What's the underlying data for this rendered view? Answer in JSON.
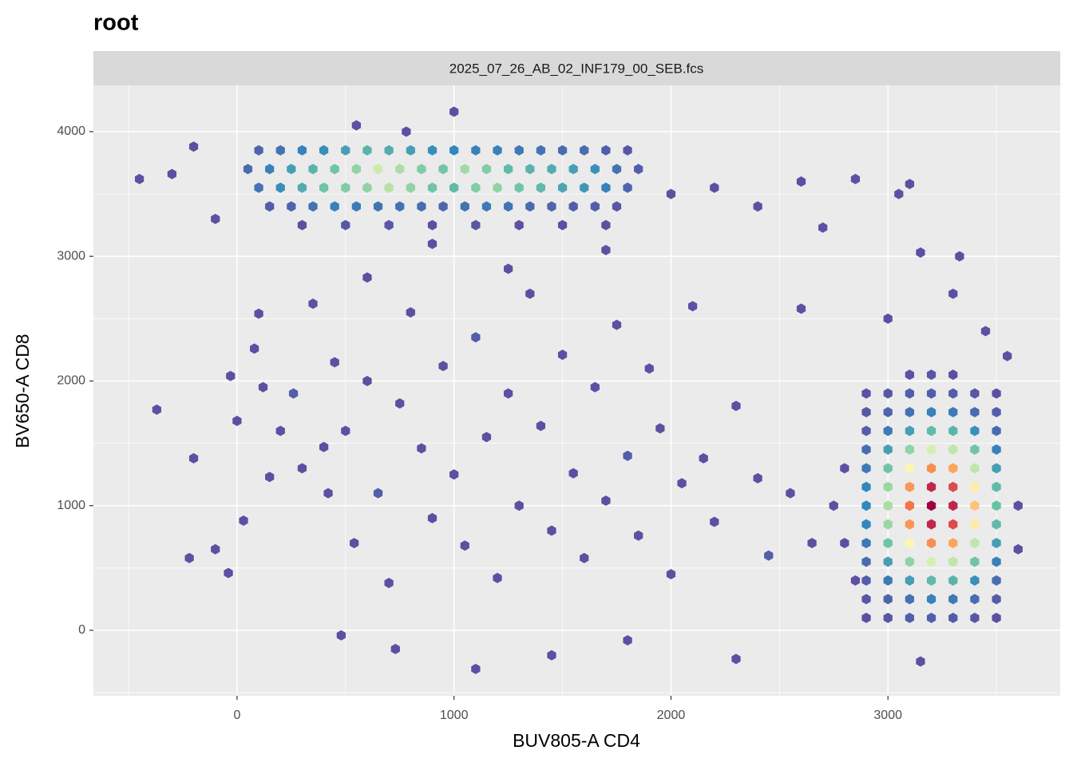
{
  "chart_data": {
    "type": "hexbin",
    "title": "root",
    "facet": "2025_07_26_AB_02_INF179_00_SEB.fcs",
    "x_label": "BUV805-A CD4",
    "y_label": "BV650-A CD8",
    "xlim": [
      -662,
      3794
    ],
    "ylim": [
      -525,
      4371
    ],
    "xticks": [
      0,
      1000,
      2000,
      3000
    ],
    "yticks": [
      0,
      1000,
      2000,
      3000,
      4000
    ],
    "x_minor": [
      -500,
      500,
      1500,
      2500,
      3500
    ],
    "y_minor": [
      -500,
      500,
      1500,
      2500,
      3500
    ],
    "grid": true,
    "colors": [
      "#5e4fa2",
      "#3288bd",
      "#66c2a5",
      "#abdda4",
      "#ffffbf",
      "#fdae61",
      "#f46d43",
      "#d53e4f",
      "#9e0142"
    ],
    "x": [
      100,
      200,
      300,
      400,
      500,
      600,
      700,
      800,
      900,
      1000,
      1100,
      1200,
      1300,
      1400,
      1500,
      1600,
      1700,
      1800,
      50,
      150,
      250,
      350,
      450,
      550,
      650,
      750,
      850,
      950,
      1050,
      1150,
      1250,
      1350,
      1450,
      1550,
      1650,
      1750,
      1850,
      100,
      200,
      300,
      400,
      500,
      600,
      700,
      800,
      900,
      1000,
      1100,
      1200,
      1300,
      1400,
      1500,
      1600,
      1700,
      1800,
      150,
      250,
      350,
      450,
      550,
      650,
      750,
      850,
      950,
      1050,
      1150,
      1250,
      1350,
      1450,
      1550,
      1650,
      1750,
      300,
      500,
      700,
      900,
      1100,
      1300,
      1500,
      1700,
      -450,
      -300,
      -200,
      -100,
      2000,
      2200,
      2400,
      2600,
      2700,
      3050,
      3100,
      2850,
      1000,
      550,
      780,
      2900,
      3000,
      3100,
      3200,
      3300,
      3400,
      3500,
      2900,
      3000,
      3100,
      3200,
      3300,
      3400,
      3500,
      2900,
      3000,
      3100,
      3200,
      3300,
      3400,
      3500,
      2900,
      3000,
      3100,
      3200,
      3300,
      3400,
      3500,
      2900,
      3000,
      3100,
      3200,
      3300,
      3400,
      3500,
      2900,
      3000,
      3100,
      3200,
      3300,
      3400,
      3500,
      2900,
      3000,
      3100,
      3200,
      3300,
      3400,
      3500,
      2900,
      3000,
      3100,
      3200,
      3300,
      3400,
      3500,
      2900,
      3000,
      3100,
      3200,
      3300,
      3400,
      3500,
      2900,
      3000,
      3100,
      3200,
      3300,
      3400,
      3500,
      2900,
      3000,
      3100,
      3200,
      3300,
      3400,
      3500,
      2900,
      3000,
      3100,
      3200,
      3300,
      3400,
      3500,
      2900,
      3000,
      3100,
      3200,
      3300,
      3400,
      3500,
      3100,
      3200,
      3300,
      2800,
      2750,
      2800,
      3600,
      3600,
      2850,
      3150,
      3450,
      3300,
      3150,
      3330,
      3000,
      3550,
      -370,
      -200,
      -220,
      -100,
      -40,
      -30,
      0,
      30,
      80,
      100,
      120,
      150,
      200,
      260,
      300,
      350,
      400,
      420,
      450,
      500,
      540,
      600,
      650,
      700,
      750,
      800,
      850,
      900,
      950,
      1000,
      1050,
      1100,
      1150,
      1200,
      1250,
      1300,
      1350,
      1400,
      1450,
      1500,
      1550,
      1600,
      1650,
      1700,
      1750,
      1800,
      1850,
      1900,
      1950,
      2000,
      2050,
      2100,
      2150,
      2200,
      2300,
      2400,
      2450,
      2550,
      2600,
      2650,
      1100,
      730,
      1450,
      480,
      1800,
      2300,
      900,
      600,
      1250,
      1700
    ],
    "y": [
      3850,
      3850,
      3850,
      3850,
      3850,
      3850,
      3850,
      3850,
      3850,
      3850,
      3850,
      3850,
      3850,
      3850,
      3850,
      3850,
      3850,
      3850,
      3700,
      3700,
      3700,
      3700,
      3700,
      3700,
      3700,
      3700,
      3700,
      3700,
      3700,
      3700,
      3700,
      3700,
      3700,
      3700,
      3700,
      3700,
      3700,
      3550,
      3550,
      3550,
      3550,
      3550,
      3550,
      3550,
      3550,
      3550,
      3550,
      3550,
      3550,
      3550,
      3550,
      3550,
      3550,
      3550,
      3550,
      3400,
      3400,
      3400,
      3400,
      3400,
      3400,
      3400,
      3400,
      3400,
      3400,
      3400,
      3400,
      3400,
      3400,
      3400,
      3400,
      3400,
      3250,
      3250,
      3250,
      3250,
      3250,
      3250,
      3250,
      3250,
      3620,
      3660,
      3880,
      3300,
      3500,
      3550,
      3400,
      3600,
      3230,
      3500,
      3580,
      3620,
      4160,
      4050,
      4000,
      100,
      100,
      100,
      100,
      100,
      100,
      100,
      250,
      250,
      250,
      250,
      250,
      250,
      250,
      400,
      400,
      400,
      400,
      400,
      400,
      400,
      550,
      550,
      550,
      550,
      550,
      550,
      550,
      700,
      700,
      700,
      700,
      700,
      700,
      700,
      850,
      850,
      850,
      850,
      850,
      850,
      850,
      1000,
      1000,
      1000,
      1000,
      1000,
      1000,
      1000,
      1150,
      1150,
      1150,
      1150,
      1150,
      1150,
      1150,
      1300,
      1300,
      1300,
      1300,
      1300,
      1300,
      1300,
      1450,
      1450,
      1450,
      1450,
      1450,
      1450,
      1450,
      1600,
      1600,
      1600,
      1600,
      1600,
      1600,
      1600,
      1750,
      1750,
      1750,
      1750,
      1750,
      1750,
      1750,
      1900,
      1900,
      1900,
      1900,
      1900,
      1900,
      1900,
      2050,
      2050,
      2050,
      700,
      1000,
      1300,
      1000,
      650,
      400,
      -250,
      2400,
      2700,
      3030,
      3000,
      2500,
      2200,
      1770,
      1380,
      580,
      650,
      460,
      2040,
      1680,
      880,
      2260,
      2540,
      1950,
      1230,
      1600,
      1900,
      1300,
      2620,
      1470,
      1100,
      2150,
      1600,
      700,
      2000,
      1100,
      380,
      1820,
      2550,
      1460,
      900,
      2120,
      1250,
      680,
      2350,
      1550,
      420,
      1900,
      1000,
      2700,
      1640,
      800,
      2210,
      1260,
      580,
      1950,
      1040,
      2450,
      1400,
      760,
      2100,
      1620,
      450,
      1180,
      2600,
      1380,
      870,
      1800,
      1220,
      600,
      1100,
      2580,
      700,
      -310,
      -150,
      -200,
      -40,
      -80,
      -230,
      3100,
      2830,
      2900,
      3050
    ],
    "counts": [
      4,
      6,
      8,
      10,
      12,
      15,
      14,
      12,
      10,
      9,
      8,
      8,
      7,
      6,
      5,
      5,
      3,
      2,
      5,
      8,
      12,
      15,
      18,
      22,
      28,
      25,
      20,
      18,
      24,
      20,
      16,
      15,
      14,
      12,
      10,
      6,
      3,
      6,
      10,
      14,
      18,
      20,
      22,
      26,
      22,
      18,
      16,
      20,
      22,
      18,
      16,
      13,
      11,
      8,
      4,
      3,
      4,
      6,
      8,
      7,
      6,
      6,
      5,
      4,
      6,
      7,
      6,
      5,
      4,
      3,
      3,
      2,
      1,
      2,
      2,
      1,
      2,
      1,
      1,
      1,
      1,
      1,
      1,
      1,
      1,
      1,
      1,
      1,
      1,
      1,
      1,
      1,
      1,
      1,
      1,
      1,
      2,
      3,
      3,
      3,
      2,
      1,
      2,
      4,
      6,
      8,
      7,
      5,
      3,
      3,
      7,
      12,
      16,
      15,
      10,
      5,
      5,
      12,
      22,
      29,
      27,
      18,
      8,
      7,
      18,
      34,
      45,
      42,
      27,
      12,
      9,
      23,
      44,
      60,
      55,
      35,
      16,
      9,
      25,
      48,
      65,
      60,
      39,
      17,
      9,
      23,
      44,
      60,
      55,
      35,
      16,
      7,
      18,
      34,
      45,
      42,
      27,
      12,
      5,
      12,
      22,
      29,
      27,
      18,
      8,
      3,
      7,
      12,
      16,
      15,
      10,
      5,
      2,
      4,
      6,
      8,
      7,
      5,
      3,
      1,
      2,
      3,
      3,
      3,
      2,
      1,
      1,
      2,
      1,
      1,
      1,
      1,
      1,
      1,
      1,
      1,
      1,
      1,
      1,
      1,
      1,
      1,
      1,
      1,
      1,
      1,
      1,
      1,
      1,
      1,
      1,
      1,
      1,
      1,
      1,
      3,
      1,
      1,
      1,
      1,
      1,
      1,
      1,
      1,
      3,
      1,
      1,
      1,
      1,
      1,
      1,
      1,
      1,
      3,
      1,
      1,
      1,
      1,
      1,
      1,
      1,
      1,
      1,
      1,
      1,
      1,
      1,
      3,
      1,
      1,
      1,
      1,
      1,
      1,
      1,
      1,
      1,
      1,
      3,
      1,
      1,
      1,
      1,
      1,
      1,
      1,
      1,
      1,
      1,
      1,
      1,
      1
    ]
  }
}
